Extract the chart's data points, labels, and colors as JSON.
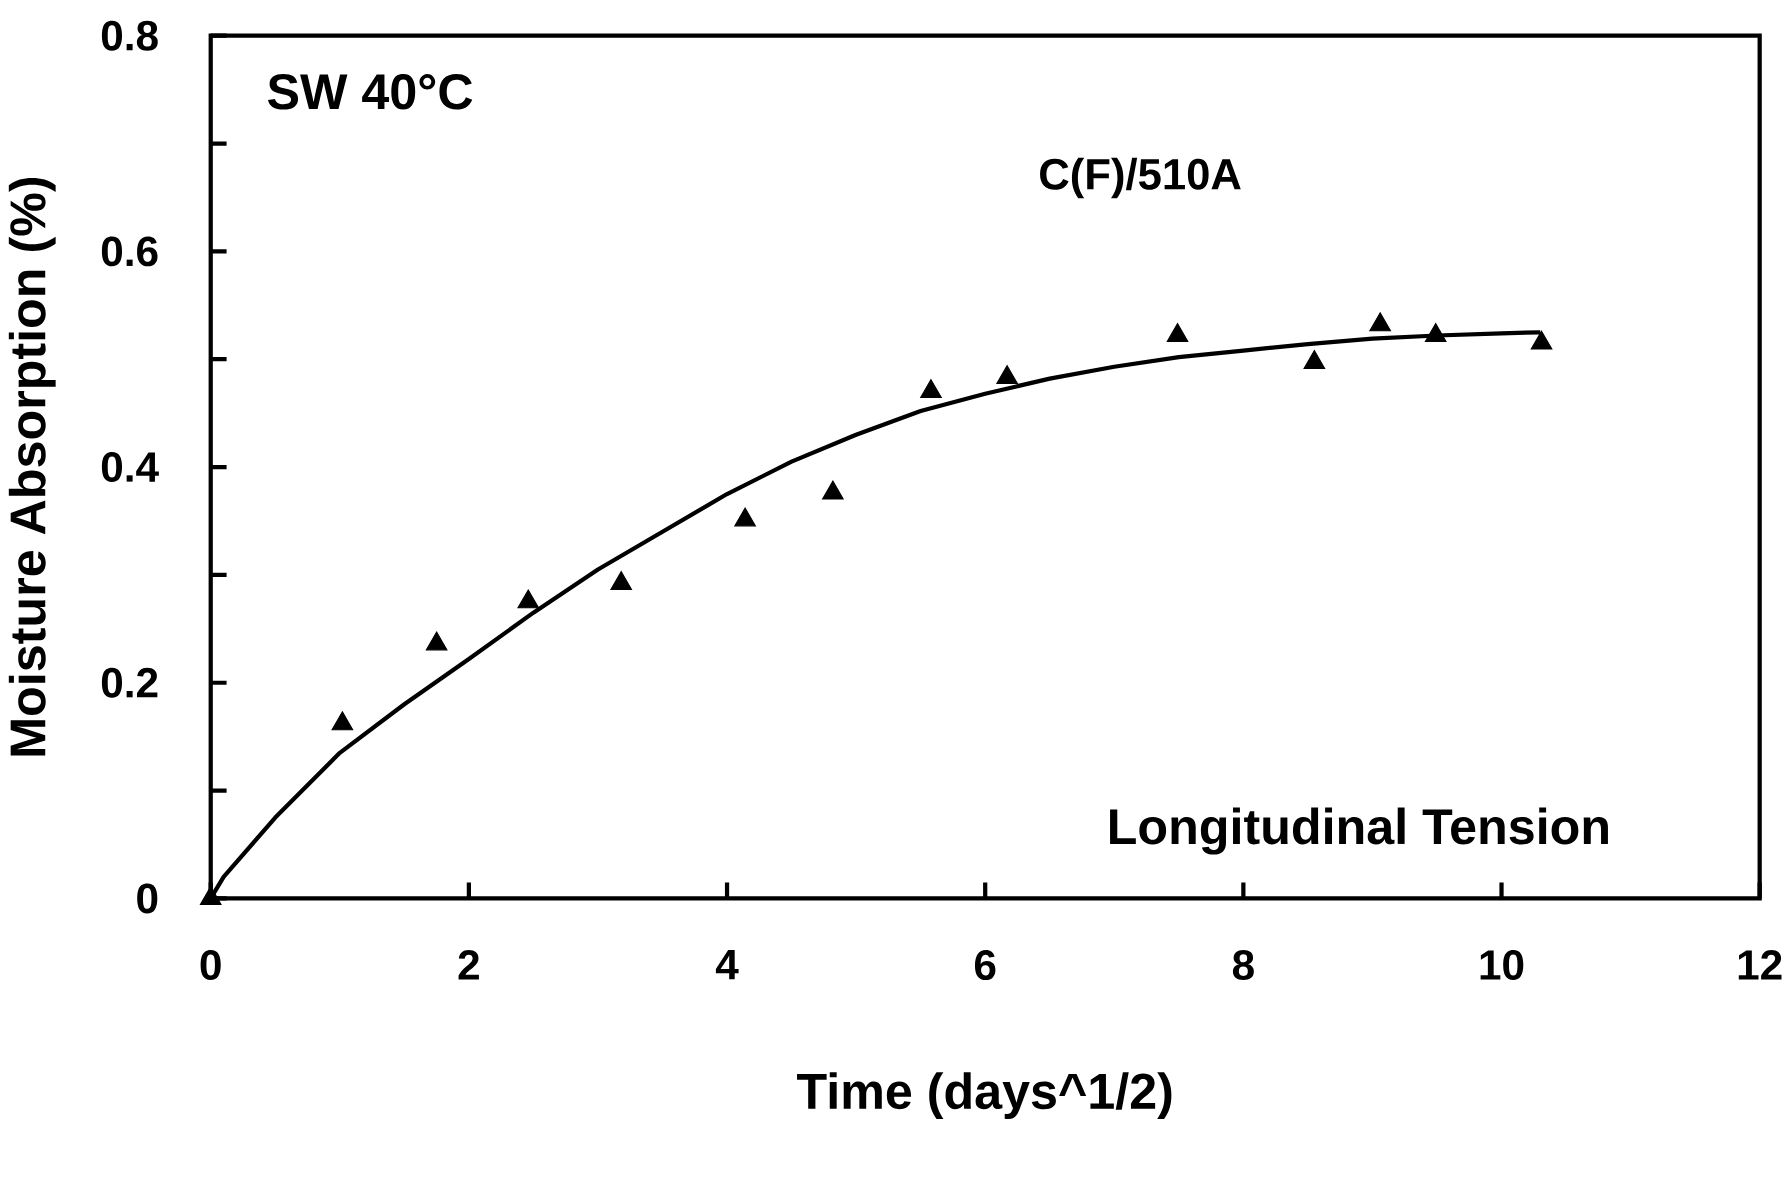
{
  "chart_data": {
    "type": "scatter",
    "xlabel": "Time (days^1/2)",
    "ylabel": "Moisture Absorption (%)",
    "annotations": [
      "SW 40°C",
      "Longitudinal Tension"
    ],
    "xlim": [
      0,
      12
    ],
    "xticks": [
      0,
      2,
      4,
      6,
      8,
      10,
      12
    ],
    "ylim": [
      0,
      0.8
    ],
    "yticks": [
      0,
      {
        "value": 0.1,
        "label": null
      },
      0.2,
      {
        "value": 0.3,
        "label": null
      },
      0.4,
      {
        "value": 0.5,
        "label": null
      },
      0.6,
      {
        "value": 0.7,
        "label": null
      },
      0.8
    ],
    "grid": false,
    "series": [
      {
        "name": "C(F)/510A",
        "marker": "triangle",
        "color": "#000000",
        "x": [
          0,
          1.02,
          1.75,
          2.46,
          3.18,
          4.14,
          4.82,
          5.58,
          6.17,
          7.49,
          8.55,
          9.06,
          9.49,
          10.31
        ],
        "values": [
          0,
          0.162,
          0.236,
          0.275,
          0.292,
          0.351,
          0.376,
          0.47,
          0.483,
          0.522,
          0.497,
          0.532,
          0.522,
          0.515
        ]
      },
      {
        "type": "line",
        "marker": "none",
        "line_style": "solid",
        "color": "#000000",
        "x": [
          0,
          0.1,
          0.5,
          1,
          1.5,
          2,
          2.5,
          3,
          3.5,
          4,
          4.5,
          5,
          5.5,
          6,
          6.5,
          7,
          7.5,
          8,
          8.5,
          9,
          9.5,
          10,
          10.3
        ],
        "values": [
          0,
          0.02,
          0.075,
          0.135,
          0.18,
          0.222,
          0.265,
          0.305,
          0.34,
          0.375,
          0.405,
          0.43,
          0.452,
          0.468,
          0.482,
          0.493,
          0.502,
          0.508,
          0.514,
          0.519,
          0.522,
          0.524,
          0.525
        ]
      }
    ]
  }
}
